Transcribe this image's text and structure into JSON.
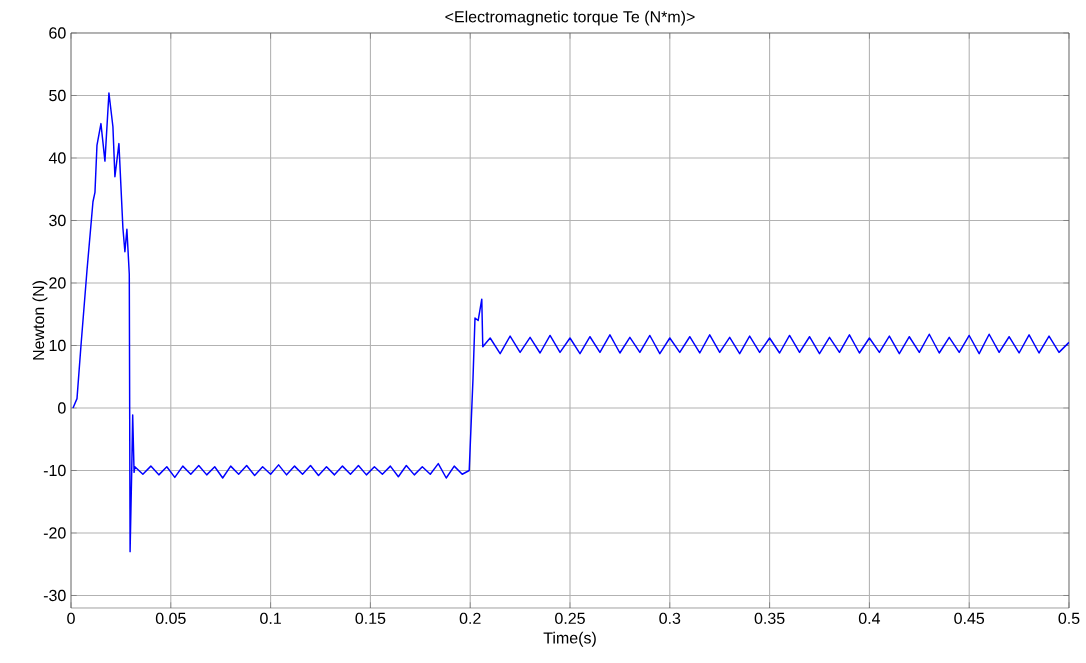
{
  "chart_data": {
    "type": "line",
    "title": "<Electromagnetic torque Te (N*m)>",
    "xlabel": "Time(s)",
    "ylabel": "Newton (N)",
    "x": [
      0.001,
      0.003,
      0.005,
      0.008,
      0.011,
      0.012,
      0.013,
      0.015,
      0.017,
      0.019,
      0.021,
      0.022,
      0.024,
      0.026,
      0.027,
      0.028,
      0.0292,
      0.0296,
      0.0304,
      0.0309,
      0.0316,
      0.032,
      0.036,
      0.04,
      0.044,
      0.048,
      0.052,
      0.056,
      0.06,
      0.064,
      0.068,
      0.072,
      0.076,
      0.08,
      0.084,
      0.088,
      0.092,
      0.096,
      0.1,
      0.104,
      0.108,
      0.112,
      0.116,
      0.12,
      0.124,
      0.128,
      0.132,
      0.136,
      0.14,
      0.144,
      0.148,
      0.152,
      0.156,
      0.16,
      0.164,
      0.168,
      0.172,
      0.176,
      0.18,
      0.184,
      0.188,
      0.192,
      0.196,
      0.1995,
      0.2014,
      0.2024,
      0.204,
      0.2058,
      0.2063,
      0.21,
      0.215,
      0.22,
      0.225,
      0.23,
      0.235,
      0.24,
      0.245,
      0.25,
      0.255,
      0.26,
      0.265,
      0.27,
      0.275,
      0.28,
      0.285,
      0.29,
      0.295,
      0.3,
      0.305,
      0.31,
      0.315,
      0.32,
      0.325,
      0.33,
      0.335,
      0.34,
      0.345,
      0.35,
      0.355,
      0.36,
      0.365,
      0.37,
      0.375,
      0.38,
      0.385,
      0.39,
      0.395,
      0.4,
      0.405,
      0.41,
      0.415,
      0.42,
      0.425,
      0.43,
      0.435,
      0.44,
      0.445,
      0.45,
      0.455,
      0.46,
      0.465,
      0.47,
      0.475,
      0.48,
      0.485,
      0.49,
      0.495,
      0.5
    ],
    "series": [
      {
        "color": "#0000ff",
        "values": [
          0,
          1.5,
          10,
          22,
          33,
          34.5,
          42,
          45.5,
          39.5,
          50.4,
          45,
          37,
          42.3,
          28.8,
          25,
          28.6,
          21.4,
          -23,
          -10.3,
          -1.1,
          -10.3,
          -9.4,
          -10.6,
          -9.3,
          -10.7,
          -9.4,
          -11.1,
          -9.3,
          -10.6,
          -9.2,
          -10.7,
          -9.4,
          -11.2,
          -9.3,
          -10.6,
          -9.2,
          -10.8,
          -9.4,
          -10.6,
          -9.1,
          -10.7,
          -9.3,
          -10.6,
          -9.2,
          -10.8,
          -9.4,
          -10.7,
          -9.3,
          -10.6,
          -9.2,
          -10.7,
          -9.4,
          -10.6,
          -9.3,
          -11,
          -9.2,
          -10.7,
          -9.4,
          -10.6,
          -8.9,
          -11.2,
          -9.3,
          -10.6,
          -10,
          4.7,
          14.4,
          14,
          17.4,
          9.8,
          11.2,
          8.7,
          11.5,
          8.9,
          11.3,
          8.8,
          11.6,
          8.9,
          11.2,
          8.7,
          11.4,
          8.9,
          11.7,
          8.8,
          11.3,
          8.9,
          11.6,
          8.7,
          11.2,
          8.9,
          11.4,
          8.8,
          11.7,
          8.9,
          11.3,
          8.7,
          11.5,
          8.9,
          11.2,
          8.8,
          11.6,
          8.9,
          11.4,
          8.7,
          11.3,
          8.9,
          11.7,
          8.8,
          11.2,
          8.9,
          11.5,
          8.7,
          11.4,
          8.9,
          11.8,
          8.8,
          11.3,
          8.9,
          11.6,
          8.7,
          11.8,
          8.9,
          11.4,
          8.8,
          11.7,
          8.8,
          11.5,
          8.9,
          10.5
        ]
      }
    ],
    "xlim": [
      0,
      0.5
    ],
    "ylim": [
      -32,
      60
    ],
    "xticks": [
      0,
      0.05,
      0.1,
      0.15,
      0.2,
      0.25,
      0.3,
      0.35,
      0.4,
      0.45,
      0.5
    ],
    "yticks": [
      -30,
      -20,
      -10,
      0,
      10,
      20,
      30,
      40,
      50,
      60
    ],
    "grid": true,
    "marker": "none",
    "line_style": "solid"
  }
}
